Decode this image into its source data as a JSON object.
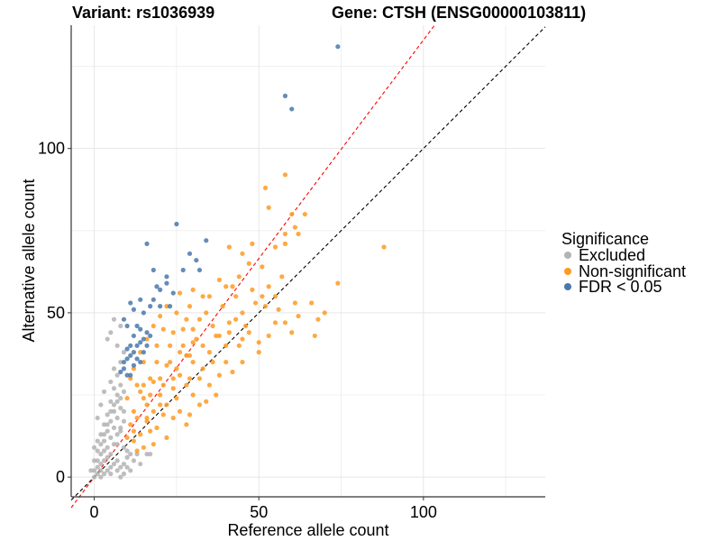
{
  "chart_data": {
    "type": "scatter",
    "title_left": "Variant: rs1036939",
    "title_right": "Gene: CTSH (ENSG00000103811)",
    "xlabel": "Reference allele count",
    "ylabel": "Alternative allele count",
    "xlim": [
      -7,
      137
    ],
    "ylim": [
      -6,
      137.5
    ],
    "x_ticks": [
      0,
      50,
      100
    ],
    "y_ticks": [
      0,
      50,
      100
    ],
    "x_minor_grid": [
      25,
      75,
      125
    ],
    "y_minor_grid": [
      25,
      75,
      125
    ],
    "grid": true,
    "legend": {
      "title": "Significance",
      "position": "right",
      "entries": [
        {
          "label": "Excluded",
          "color": "#b3b3b3"
        },
        {
          "label": "Non-significant",
          "color": "#ff9a1f"
        },
        {
          "label": "FDR < 0.05",
          "color": "#4a78ad"
        }
      ]
    },
    "reference_lines": [
      {
        "name": "identity",
        "slope": 1.0,
        "intercept": 0,
        "color": "#000000",
        "style": "dashed"
      },
      {
        "name": "fitted-ratio",
        "slope": 1.33,
        "intercept": 0,
        "color": "#ff0000",
        "style": "dashed"
      }
    ],
    "series": [
      {
        "name": "FDR < 0.05",
        "color": "#4a78ad",
        "points": [
          [
            74,
            131
          ],
          [
            58,
            116
          ],
          [
            60,
            112
          ],
          [
            25,
            77
          ],
          [
            16,
            71
          ],
          [
            34,
            72
          ],
          [
            29,
            68
          ],
          [
            32,
            63
          ],
          [
            31,
            66
          ],
          [
            22,
            61
          ],
          [
            18,
            63
          ],
          [
            27,
            63
          ],
          [
            19,
            58
          ],
          [
            22,
            59
          ],
          [
            20,
            57
          ],
          [
            18,
            54
          ],
          [
            14,
            54
          ],
          [
            11,
            53
          ],
          [
            17,
            52
          ],
          [
            20,
            52
          ],
          [
            24,
            56
          ],
          [
            23,
            52
          ],
          [
            12,
            51
          ],
          [
            15,
            50
          ],
          [
            9,
            48
          ],
          [
            10,
            46
          ],
          [
            13,
            46
          ],
          [
            14,
            45
          ],
          [
            16,
            44
          ],
          [
            17,
            43
          ],
          [
            12,
            43
          ],
          [
            15,
            42
          ],
          [
            14,
            41
          ],
          [
            13,
            40
          ],
          [
            11,
            40
          ],
          [
            10,
            39
          ],
          [
            16,
            40
          ],
          [
            15,
            38
          ],
          [
            12,
            38
          ],
          [
            11,
            37
          ],
          [
            10,
            36
          ],
          [
            9,
            35
          ],
          [
            13,
            36
          ],
          [
            14,
            35
          ],
          [
            9,
            33
          ],
          [
            8,
            32
          ],
          [
            10,
            31
          ],
          [
            11,
            31
          ],
          [
            12,
            34
          ]
        ]
      },
      {
        "name": "Non-significant",
        "color": "#ff9a1f",
        "points": [
          [
            88,
            70
          ],
          [
            74,
            59
          ],
          [
            58,
            92
          ],
          [
            52,
            88
          ],
          [
            60,
            80
          ],
          [
            64,
            80
          ],
          [
            53,
            82
          ],
          [
            61,
            76
          ],
          [
            58,
            74
          ],
          [
            62,
            74
          ],
          [
            55,
            70
          ],
          [
            58,
            71
          ],
          [
            48,
            71
          ],
          [
            41,
            70
          ],
          [
            45,
            68
          ],
          [
            47,
            65
          ],
          [
            51,
            64
          ],
          [
            44,
            61
          ],
          [
            38,
            60
          ],
          [
            40,
            58
          ],
          [
            42,
            58
          ],
          [
            48,
            57
          ],
          [
            51,
            55
          ],
          [
            43,
            55
          ],
          [
            55,
            55
          ],
          [
            52,
            52
          ],
          [
            61,
            53
          ],
          [
            66,
            53
          ],
          [
            70,
            50
          ],
          [
            67,
            43
          ],
          [
            68,
            48
          ],
          [
            58,
            47
          ],
          [
            62,
            49
          ],
          [
            55,
            47
          ],
          [
            60,
            44
          ],
          [
            46,
            46
          ],
          [
            45,
            42
          ],
          [
            50,
            41
          ],
          [
            44,
            40
          ],
          [
            41,
            44
          ],
          [
            38,
            43
          ],
          [
            35,
            38
          ],
          [
            36,
            35
          ],
          [
            40,
            35
          ],
          [
            45,
            35
          ],
          [
            30,
            35
          ],
          [
            33,
            33
          ],
          [
            29,
            30
          ],
          [
            26,
            31
          ],
          [
            32,
            30
          ],
          [
            28,
            28
          ],
          [
            24,
            27
          ],
          [
            20,
            25
          ],
          [
            22,
            22
          ],
          [
            25,
            24
          ],
          [
            18,
            20
          ],
          [
            16,
            17
          ],
          [
            21,
            19
          ],
          [
            19,
            15
          ],
          [
            17,
            14
          ],
          [
            12,
            11
          ],
          [
            14,
            13
          ],
          [
            10,
            12
          ],
          [
            15,
            9
          ],
          [
            13,
            8
          ],
          [
            26,
            20
          ],
          [
            30,
            25
          ],
          [
            24,
            18
          ],
          [
            35,
            28
          ],
          [
            38,
            31
          ],
          [
            42,
            32
          ],
          [
            37,
            25
          ],
          [
            32,
            22
          ],
          [
            28,
            16
          ],
          [
            22,
            12
          ],
          [
            18,
            10
          ],
          [
            29,
            19
          ],
          [
            34,
            23
          ],
          [
            20,
            30
          ],
          [
            23,
            35
          ],
          [
            27,
            40
          ],
          [
            30,
            45
          ],
          [
            19,
            40
          ],
          [
            15,
            35
          ],
          [
            21,
            45
          ],
          [
            25,
            50
          ],
          [
            29,
            52
          ],
          [
            33,
            55
          ],
          [
            28,
            48
          ],
          [
            24,
            44
          ],
          [
            17,
            30
          ],
          [
            14,
            26
          ],
          [
            12,
            20
          ],
          [
            11,
            16
          ],
          [
            16,
            22
          ],
          [
            13,
            28
          ],
          [
            10,
            24
          ],
          [
            11,
            30
          ],
          [
            12,
            33
          ],
          [
            14,
            38
          ],
          [
            16,
            42
          ],
          [
            18,
            46
          ],
          [
            20,
            49
          ],
          [
            22,
            52
          ],
          [
            26,
            56
          ],
          [
            30,
            57
          ],
          [
            35,
            55
          ],
          [
            39,
            52
          ],
          [
            43,
            48
          ],
          [
            47,
            44
          ],
          [
            50,
            38
          ],
          [
            53,
            43
          ],
          [
            56,
            51
          ],
          [
            40,
            40
          ],
          [
            36,
            46
          ],
          [
            32,
            48
          ],
          [
            27,
            45
          ],
          [
            23,
            40
          ],
          [
            19,
            35
          ],
          [
            15,
            28
          ],
          [
            17,
            25
          ],
          [
            21,
            28
          ],
          [
            25,
            33
          ],
          [
            29,
            37
          ],
          [
            33,
            40
          ],
          [
            37,
            43
          ],
          [
            41,
            47
          ],
          [
            45,
            50
          ],
          [
            49,
            53
          ],
          [
            53,
            58
          ],
          [
            57,
            61
          ],
          [
            34,
            50
          ],
          [
            31,
            42
          ],
          [
            28,
            37
          ],
          [
            24,
            30
          ],
          [
            20,
            22
          ],
          [
            16,
            18
          ],
          [
            12,
            14
          ],
          [
            13,
            18
          ],
          [
            15,
            24
          ],
          [
            18,
            29
          ],
          [
            22,
            34
          ],
          [
            26,
            38
          ],
          [
            30,
            41
          ]
        ]
      },
      {
        "name": "Excluded",
        "color": "#b3b3b3",
        "points": [
          [
            0,
            0
          ],
          [
            1,
            1
          ],
          [
            2,
            2
          ],
          [
            1,
            3
          ],
          [
            3,
            1
          ],
          [
            2,
            4
          ],
          [
            4,
            2
          ],
          [
            3,
            5
          ],
          [
            5,
            3
          ],
          [
            0,
            2
          ],
          [
            2,
            0
          ],
          [
            1,
            5
          ],
          [
            5,
            1
          ],
          [
            4,
            6
          ],
          [
            6,
            4
          ],
          [
            3,
            8
          ],
          [
            8,
            3
          ],
          [
            5,
            7
          ],
          [
            7,
            5
          ],
          [
            2,
            7
          ],
          [
            7,
            2
          ],
          [
            4,
            9
          ],
          [
            9,
            4
          ],
          [
            6,
            10
          ],
          [
            10,
            6
          ],
          [
            3,
            11
          ],
          [
            5,
            12
          ],
          [
            7,
            13
          ],
          [
            4,
            14
          ],
          [
            6,
            15
          ],
          [
            8,
            14
          ],
          [
            5,
            17
          ],
          [
            7,
            18
          ],
          [
            3,
            16
          ],
          [
            6,
            20
          ],
          [
            8,
            21
          ],
          [
            4,
            19
          ],
          [
            5,
            23
          ],
          [
            7,
            25
          ],
          [
            6,
            27
          ],
          [
            8,
            28
          ],
          [
            9,
            26
          ],
          [
            5,
            29
          ],
          [
            7,
            31
          ],
          [
            6,
            33
          ],
          [
            8,
            35
          ],
          [
            9,
            38
          ],
          [
            7,
            40
          ],
          [
            8,
            46
          ],
          [
            6,
            48
          ],
          [
            5,
            44
          ],
          [
            4,
            42
          ],
          [
            3,
            26
          ],
          [
            2,
            22
          ],
          [
            1,
            18
          ],
          [
            2,
            13
          ],
          [
            0,
            9
          ],
          [
            1,
            11
          ],
          [
            9,
            9
          ],
          [
            10,
            8
          ],
          [
            11,
            7
          ],
          [
            12,
            5
          ],
          [
            13,
            7
          ],
          [
            16,
            7
          ],
          [
            17,
            7
          ],
          [
            10,
            3
          ],
          [
            14,
            4
          ],
          [
            9,
            1
          ],
          [
            11,
            2
          ],
          [
            8,
            0
          ],
          [
            -1,
            2
          ],
          [
            0,
            5
          ],
          [
            1,
            8
          ],
          [
            2,
            10
          ],
          [
            3,
            13
          ],
          [
            4,
            16
          ],
          [
            5,
            20
          ],
          [
            6,
            22
          ],
          [
            7,
            23
          ],
          [
            8,
            24
          ],
          [
            9,
            20
          ],
          [
            9,
            17
          ],
          [
            8,
            15
          ],
          [
            7,
            10
          ]
        ]
      }
    ]
  }
}
